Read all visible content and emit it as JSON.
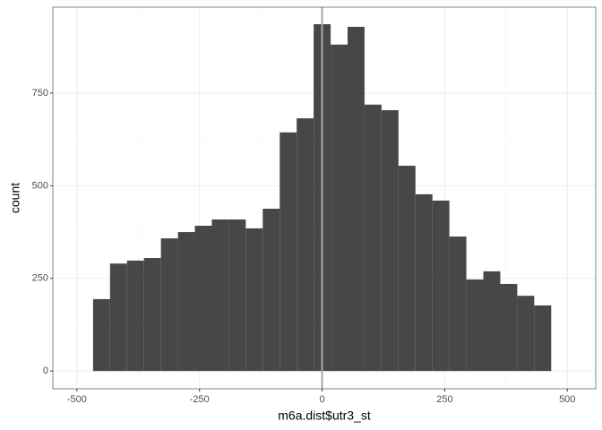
{
  "chart_data": {
    "type": "histogram",
    "x_label": "m6a.dist$utr3_st",
    "y_label": "count",
    "bins": [
      -467.0,
      -432.4,
      -397.8,
      -363.2,
      -328.6,
      -294.0,
      -259.4,
      -224.8,
      -190.2,
      -155.6,
      -121.0,
      -86.4,
      -51.8,
      -17.2,
      17.4,
      52.0,
      86.6,
      121.2,
      155.8,
      190.4,
      225.0,
      259.6,
      294.2,
      328.8,
      363.4,
      398.0,
      432.6,
      467.2
    ],
    "values": [
      194,
      290,
      298,
      305,
      358,
      375,
      392,
      409,
      409,
      385,
      438,
      644,
      682,
      936,
      881,
      929,
      719,
      704,
      554,
      477,
      460,
      363,
      247,
      269,
      235,
      203,
      177
    ],
    "color": "#474747",
    "vline": 0,
    "vline_color": "#a6a6a6",
    "xlim": [
      -549,
      558
    ],
    "ylim": [
      -48,
      982
    ],
    "xticks": [
      -500,
      -250,
      0,
      250,
      500
    ],
    "yticks": [
      0,
      250,
      500,
      750
    ],
    "grid": true
  }
}
